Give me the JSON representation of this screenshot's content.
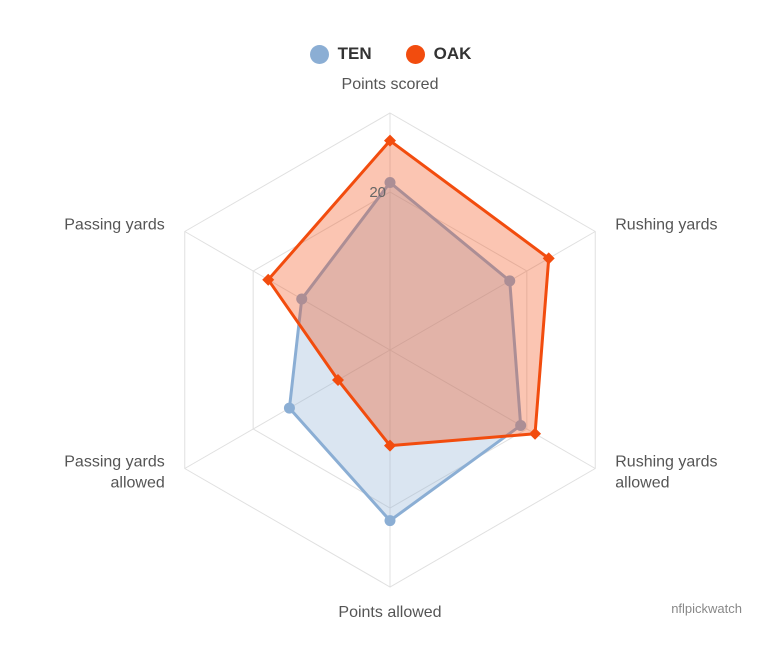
{
  "chart_data": {
    "type": "radar",
    "axes": [
      "Points scored",
      "Rushing yards",
      "Rushing yards allowed",
      "Points allowed",
      "Passing yards allowed",
      "Passing yards"
    ],
    "axis_label_lines": [
      [
        "Points scored"
      ],
      [
        "Rushing yards"
      ],
      [
        "Rushing yards",
        "allowed"
      ],
      [
        "Points allowed"
      ],
      [
        "Passing yards",
        "allowed"
      ],
      [
        "Passing yards"
      ]
    ],
    "tick_labels": [
      "20"
    ],
    "ticks": [
      20
    ],
    "rmax": 30,
    "grid": true,
    "legend_position": "top-center",
    "series": [
      {
        "name": "TEN",
        "color": "#8baed4",
        "marker": "circle",
        "values": [
          21.2,
          17.5,
          19.1,
          21.6,
          14.7,
          12.9
        ]
      },
      {
        "name": "OAK",
        "color": "#f24c0e",
        "marker": "diamond",
        "values": [
          26.5,
          23.2,
          21.2,
          12.1,
          7.6,
          17.8
        ]
      }
    ]
  },
  "legend": {
    "items": [
      "TEN",
      "OAK"
    ]
  },
  "credit": "nflpickwatch"
}
